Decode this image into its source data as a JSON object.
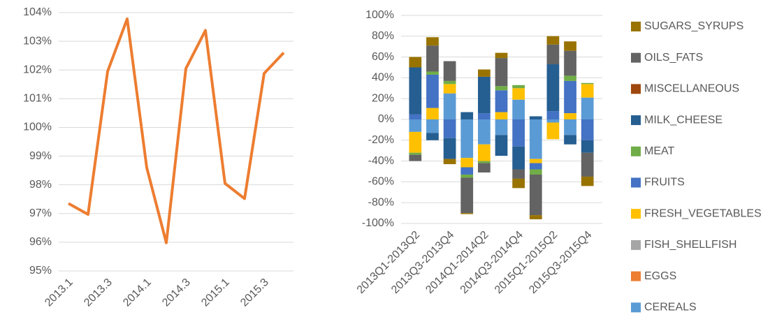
{
  "chart_data": [
    {
      "type": "line",
      "categories": [
        "2013.1",
        null,
        "2013.3",
        null,
        "2014.1",
        null,
        "2014.3",
        null,
        "2015.1",
        null,
        "2015.3",
        null
      ],
      "series": [
        {
          "color": "#ed7d31",
          "values": [
            97.35,
            96.97,
            101.95,
            103.78,
            98.6,
            95.98,
            102.05,
            103.38,
            98.05,
            97.52,
            101.88,
            102.6
          ]
        }
      ],
      "ylim": [
        95,
        104
      ],
      "yticks": [
        {
          "value": 95,
          "label": "95%"
        },
        {
          "value": 96,
          "label": "96%"
        },
        {
          "value": 97,
          "label": "97%"
        },
        {
          "value": 98,
          "label": "98%"
        },
        {
          "value": 99,
          "label": "99%"
        },
        {
          "value": 100,
          "label": "100%"
        },
        {
          "value": 101,
          "label": "101%"
        },
        {
          "value": 102,
          "label": "102%"
        },
        {
          "value": 103,
          "label": "103%"
        },
        {
          "value": 104,
          "label": "104%"
        }
      ],
      "grid": true
    },
    {
      "type": "bar",
      "stacked": true,
      "categories": [
        "2013Q1-2013Q2",
        null,
        "2013Q3-2013Q4",
        null,
        "2014Q1-2014Q2",
        null,
        "2014Q3-2014Q4",
        null,
        "2015Q1-2015Q2",
        null,
        "2015Q3-2015Q4"
      ],
      "series": [
        {
          "name": "CEREALS",
          "color": "#5b9bd5",
          "values": [
            -12,
            -13,
            25,
            -37,
            -24,
            -15,
            19,
            -38,
            -3,
            -15,
            21
          ]
        },
        {
          "name": "EGGS",
          "color": "#ed7d31",
          "values": [
            0,
            0,
            0,
            0,
            0,
            0,
            0,
            0,
            0,
            0,
            0
          ]
        },
        {
          "name": "FISH_SHELLFISH",
          "color": "#a5a5a5",
          "values": [
            0,
            0,
            0,
            0,
            0,
            0,
            0,
            0,
            0,
            0,
            0
          ]
        },
        {
          "name": "FRESH_VEGETABLES",
          "color": "#ffc000",
          "values": [
            -20,
            11,
            9,
            -9,
            -16,
            7,
            11,
            -4,
            -16,
            6,
            13
          ]
        },
        {
          "name": "FRUITS",
          "color": "#4472c4",
          "values": [
            5,
            32,
            -18,
            -7,
            6,
            21,
            -26,
            -6,
            8,
            31,
            -20
          ]
        },
        {
          "name": "MEAT",
          "color": "#70ad47",
          "values": [
            -2,
            3,
            3,
            -3,
            -2,
            4,
            3,
            -5,
            0,
            5,
            1
          ]
        },
        {
          "name": "MILK_CHEESE",
          "color": "#255e91",
          "values": [
            45,
            -7,
            -20,
            7,
            35,
            -20,
            -22,
            3,
            45,
            -9,
            -12
          ]
        },
        {
          "name": "MISCELLANEOUS",
          "color": "#9e480e",
          "values": [
            0,
            0,
            0,
            0,
            0,
            0,
            0,
            0,
            0,
            0,
            0
          ]
        },
        {
          "name": "OILS_FATS",
          "color": "#636363",
          "values": [
            -6,
            25,
            19,
            -34,
            -9,
            27,
            -9,
            -39,
            19,
            24,
            -23
          ]
        },
        {
          "name": "SUGARS_SYRUPS",
          "color": "#997300",
          "values": [
            10,
            8,
            -5,
            -1,
            7,
            5,
            -9,
            -4,
            8,
            9,
            -9
          ]
        }
      ],
      "ylim": [
        -100,
        100
      ],
      "yticks": [
        {
          "value": -100,
          "label": "-100%"
        },
        {
          "value": -80,
          "label": "-80%"
        },
        {
          "value": -60,
          "label": "-60%"
        },
        {
          "value": -40,
          "label": "-40%"
        },
        {
          "value": -20,
          "label": "-20%"
        },
        {
          "value": 0,
          "label": "0%"
        },
        {
          "value": 20,
          "label": "20%"
        },
        {
          "value": 40,
          "label": "40%"
        },
        {
          "value": 60,
          "label": "60%"
        },
        {
          "value": 80,
          "label": "80%"
        },
        {
          "value": 100,
          "label": "100%"
        }
      ],
      "grid": true,
      "legend": "right"
    }
  ]
}
